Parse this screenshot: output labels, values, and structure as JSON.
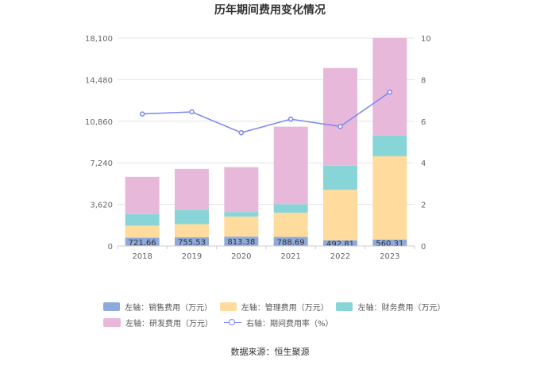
{
  "chart_data": {
    "title": "历年期间费用变化情况",
    "type": "bar",
    "stacked": true,
    "categories": [
      "2018",
      "2019",
      "2020",
      "2021",
      "2022",
      "2023"
    ],
    "series": [
      {
        "name": "左轴：销售费用（万元）",
        "axis": "left",
        "color": "#8eaadb",
        "values": [
          721.66,
          755.53,
          813.38,
          788.69,
          492.81,
          560.31
        ],
        "labels": [
          "721.66",
          "755.53",
          "813.38",
          "788.69",
          "492.81",
          "560.31"
        ]
      },
      {
        "name": "左轴：管理费用（万元）",
        "axis": "left",
        "color": "#ffdb9e",
        "values": [
          1050,
          1150,
          1750,
          2100,
          4400,
          7250
        ]
      },
      {
        "name": "左轴：财务费用（万元）",
        "axis": "left",
        "color": "#88d5d8",
        "values": [
          1000,
          1250,
          400,
          750,
          2100,
          1800
        ]
      },
      {
        "name": "左轴：研发费用（万元）",
        "axis": "left",
        "color": "#e8b8da",
        "values": [
          3250,
          3550,
          3900,
          6750,
          8500,
          8500
        ]
      },
      {
        "name": "右轴：期间费用率（%）",
        "axis": "right",
        "type": "line",
        "color": "#7b85f0",
        "values": [
          6.35,
          6.45,
          5.45,
          6.1,
          5.75,
          7.4
        ]
      }
    ],
    "y_left": {
      "ticks": [
        "0",
        "3,620",
        "7,240",
        "10,860",
        "14,480",
        "18,100"
      ],
      "range": [
        0,
        18100
      ]
    },
    "y_right": {
      "ticks": [
        "0",
        "2",
        "4",
        "6",
        "8",
        "10"
      ],
      "range": [
        0,
        10
      ]
    },
    "grid": true,
    "legend_position": "bottom"
  },
  "source": "数据来源：恒生聚源"
}
